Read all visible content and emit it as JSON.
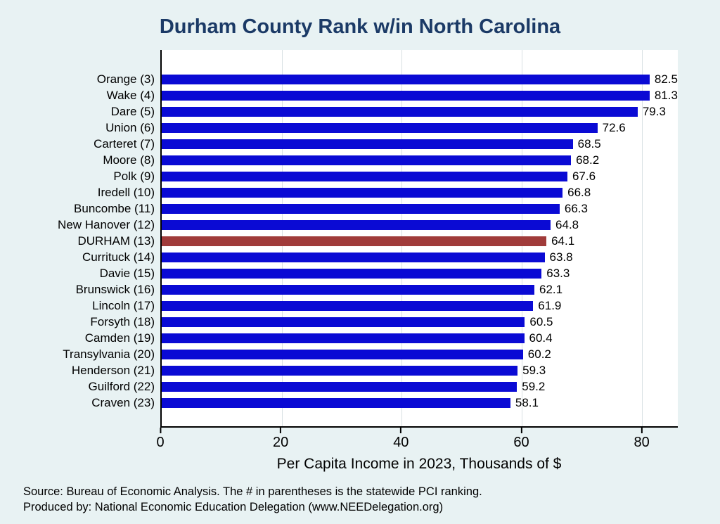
{
  "chart_data": {
    "type": "bar",
    "orientation": "horizontal",
    "title": "Durham County Rank w/in North Carolina",
    "xlabel": "Per Capita Income in 2023, Thousands of $",
    "xlim": [
      0,
      86
    ],
    "xticks": [
      0,
      20,
      40,
      60,
      80
    ],
    "grid": true,
    "bar_color": "#0a0ad4",
    "highlight_color": "#a03b3a",
    "highlight_index": 10,
    "categories": [
      "Orange  (3)",
      "Wake  (4)",
      "Dare  (5)",
      "Union  (6)",
      "Carteret  (7)",
      "Moore  (8)",
      "Polk  (9)",
      "Iredell (10)",
      "Buncombe (11)",
      "New Hanover (12)",
      "DURHAM (13)",
      "Currituck (14)",
      "Davie (15)",
      "Brunswick (16)",
      "Lincoln (17)",
      "Forsyth (18)",
      "Camden (19)",
      "Transylvania (20)",
      "Henderson (21)",
      "Guilford (22)",
      "Craven (23)"
    ],
    "values": [
      82.5,
      81.3,
      79.3,
      72.6,
      68.5,
      68.2,
      67.6,
      66.8,
      66.3,
      64.8,
      64.1,
      63.8,
      63.3,
      62.1,
      61.9,
      60.5,
      60.4,
      60.2,
      59.3,
      59.2,
      58.1
    ]
  },
  "footer": {
    "source_line": "Source: Bureau of Economic Analysis. The # in parentheses is the statewide PCI ranking.",
    "produced_line": "Produced by: National Economic Education Delegation (www.NEEDelegation.org)"
  }
}
